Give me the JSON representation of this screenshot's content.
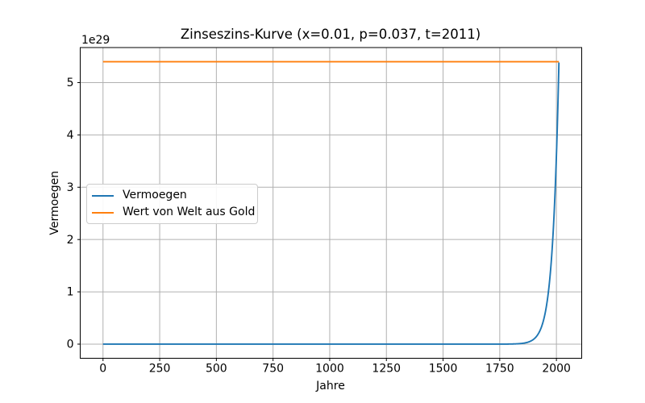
{
  "chart_data": {
    "type": "line",
    "title": "Zinseszins-Kurve (x=0.01, p=0.037, t=2011)",
    "xlabel": "Jahre",
    "ylabel": "Vermoegen",
    "offset_label": "1e29",
    "grid": true,
    "grid_color": "#b0b0b0",
    "axis_color": "#000000",
    "background_color": "#ffffff",
    "xlim": [
      -100.55,
      2111.55
    ],
    "ylim_e29": [
      -0.27,
      5.67
    ],
    "x_ticks": [
      0,
      250,
      500,
      750,
      1000,
      1250,
      1500,
      1750,
      2000
    ],
    "y_ticks_e29": [
      0,
      1,
      2,
      3,
      4,
      5
    ],
    "legend_position": "center-left",
    "series": [
      {
        "name": "Vermoegen",
        "color": "#1f77b4",
        "model": "compound_interest",
        "start_capital": 0.01,
        "interest_rate": 0.037,
        "years": 2011,
        "end_value_e29": 5.4,
        "samples_e29": [
          [
            0,
            0.0
          ],
          [
            500,
            0.0
          ],
          [
            1000,
            0.0
          ],
          [
            1500,
            4.7e-08
          ],
          [
            1750,
            0.00042
          ],
          [
            1800,
            0.0026
          ],
          [
            1850,
            0.016
          ],
          [
            1900,
            0.097
          ],
          [
            1950,
            0.59
          ],
          [
            2000,
            3.66
          ],
          [
            2011,
            5.4
          ]
        ]
      },
      {
        "name": "Wert von Welt aus Gold",
        "color": "#ff7f0e",
        "model": "constant",
        "value_e29": 5.4,
        "x_start": 0,
        "x_end": 2011
      }
    ]
  }
}
